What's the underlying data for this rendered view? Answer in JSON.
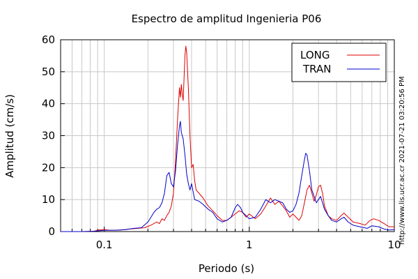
{
  "chart_data": {
    "type": "line",
    "title": "Espectro de amplitud Ingenieria P06",
    "xlabel": "Periodo (s)",
    "ylabel": "Amplitud (cm/s)",
    "x_scale": "log",
    "xlim": [
      0.05,
      10
    ],
    "ylim": [
      0,
      60
    ],
    "x_ticks": [
      {
        "value": 0.1,
        "label": "0.1"
      },
      {
        "value": 1,
        "label": "1"
      },
      {
        "value": 10,
        "label": "10"
      }
    ],
    "y_ticks": [
      {
        "value": 0,
        "label": "0"
      },
      {
        "value": 10,
        "label": "10"
      },
      {
        "value": 20,
        "label": "20"
      },
      {
        "value": 30,
        "label": "30"
      },
      {
        "value": 40,
        "label": "40"
      },
      {
        "value": 50,
        "label": "50"
      },
      {
        "value": 60,
        "label": "60"
      }
    ],
    "grid": true,
    "legend_position": "top-right",
    "side_annotation": "http://www.lis.ucr.ac.cr    2021-07-21 03:20:56 PM",
    "series": [
      {
        "name": "LONG",
        "color": "#dd0000",
        "points": [
          [
            0.05,
            0
          ],
          [
            0.07,
            0
          ],
          [
            0.085,
            0.1
          ],
          [
            0.092,
            0.5
          ],
          [
            0.1,
            0.6
          ],
          [
            0.11,
            0.4
          ],
          [
            0.13,
            0.5
          ],
          [
            0.15,
            0.8
          ],
          [
            0.17,
            1.0
          ],
          [
            0.19,
            1.2
          ],
          [
            0.21,
            2.0
          ],
          [
            0.23,
            3.0
          ],
          [
            0.24,
            2.5
          ],
          [
            0.25,
            4.0
          ],
          [
            0.26,
            3.5
          ],
          [
            0.27,
            5.0
          ],
          [
            0.28,
            6.0
          ],
          [
            0.29,
            8.0
          ],
          [
            0.3,
            12.0
          ],
          [
            0.31,
            22.0
          ],
          [
            0.32,
            35.0
          ],
          [
            0.33,
            45.0
          ],
          [
            0.335,
            42.0
          ],
          [
            0.34,
            46.0
          ],
          [
            0.345,
            43.0
          ],
          [
            0.35,
            41.0
          ],
          [
            0.355,
            48.0
          ],
          [
            0.36,
            55.0
          ],
          [
            0.365,
            58.0
          ],
          [
            0.37,
            56.0
          ],
          [
            0.38,
            45.0
          ],
          [
            0.39,
            30.0
          ],
          [
            0.4,
            20.0
          ],
          [
            0.41,
            21.0
          ],
          [
            0.42,
            16.0
          ],
          [
            0.43,
            13.0
          ],
          [
            0.45,
            12.0
          ],
          [
            0.48,
            10.5
          ],
          [
            0.52,
            8.0
          ],
          [
            0.56,
            6.5
          ],
          [
            0.6,
            5.0
          ],
          [
            0.65,
            3.5
          ],
          [
            0.7,
            3.5
          ],
          [
            0.75,
            4.5
          ],
          [
            0.8,
            5.5
          ],
          [
            0.85,
            6.5
          ],
          [
            0.9,
            6.0
          ],
          [
            0.95,
            4.5
          ],
          [
            1.0,
            5.5
          ],
          [
            1.1,
            4.0
          ],
          [
            1.2,
            5.5
          ],
          [
            1.3,
            8.0
          ],
          [
            1.4,
            10.5
          ],
          [
            1.5,
            8.5
          ],
          [
            1.6,
            9.5
          ],
          [
            1.7,
            8.0
          ],
          [
            1.8,
            6.5
          ],
          [
            1.9,
            4.5
          ],
          [
            2.0,
            5.5
          ],
          [
            2.1,
            4.5
          ],
          [
            2.2,
            3.5
          ],
          [
            2.3,
            5.0
          ],
          [
            2.4,
            9.0
          ],
          [
            2.5,
            13.0
          ],
          [
            2.6,
            14.5
          ],
          [
            2.7,
            12.0
          ],
          [
            2.8,
            9.5
          ],
          [
            2.9,
            11.5
          ],
          [
            3.0,
            14.0
          ],
          [
            3.1,
            14.5
          ],
          [
            3.2,
            12.0
          ],
          [
            3.3,
            8.0
          ],
          [
            3.5,
            5.0
          ],
          [
            3.7,
            4.0
          ],
          [
            4.0,
            3.5
          ],
          [
            4.3,
            5.0
          ],
          [
            4.5,
            5.8
          ],
          [
            4.8,
            4.5
          ],
          [
            5.2,
            3.0
          ],
          [
            5.8,
            2.5
          ],
          [
            6.3,
            2.0
          ],
          [
            6.8,
            3.5
          ],
          [
            7.2,
            4.0
          ],
          [
            7.8,
            3.5
          ],
          [
            8.5,
            2.5
          ],
          [
            9.2,
            1.5
          ],
          [
            10.0,
            1.5
          ]
        ]
      },
      {
        "name": "TRAN",
        "color": "#0000cc",
        "points": [
          [
            0.05,
            0
          ],
          [
            0.07,
            0
          ],
          [
            0.085,
            0.1
          ],
          [
            0.095,
            0.3
          ],
          [
            0.1,
            0.4
          ],
          [
            0.12,
            0.4
          ],
          [
            0.14,
            0.6
          ],
          [
            0.16,
            1.0
          ],
          [
            0.18,
            1.2
          ],
          [
            0.2,
            3.0
          ],
          [
            0.21,
            4.5
          ],
          [
            0.22,
            6.0
          ],
          [
            0.23,
            7.0
          ],
          [
            0.24,
            7.5
          ],
          [
            0.25,
            9.0
          ],
          [
            0.26,
            12.0
          ],
          [
            0.27,
            17.5
          ],
          [
            0.28,
            18.5
          ],
          [
            0.29,
            15.0
          ],
          [
            0.3,
            14.0
          ],
          [
            0.31,
            19.0
          ],
          [
            0.32,
            27.0
          ],
          [
            0.33,
            33.0
          ],
          [
            0.335,
            34.5
          ],
          [
            0.34,
            31.0
          ],
          [
            0.35,
            29.0
          ],
          [
            0.36,
            24.0
          ],
          [
            0.37,
            18.0
          ],
          [
            0.38,
            15.0
          ],
          [
            0.39,
            13.0
          ],
          [
            0.4,
            15.0
          ],
          [
            0.42,
            10.0
          ],
          [
            0.45,
            9.5
          ],
          [
            0.48,
            8.5
          ],
          [
            0.52,
            7.0
          ],
          [
            0.56,
            6.0
          ],
          [
            0.6,
            4.0
          ],
          [
            0.65,
            3.0
          ],
          [
            0.7,
            3.5
          ],
          [
            0.75,
            4.5
          ],
          [
            0.8,
            7.5
          ],
          [
            0.83,
            8.5
          ],
          [
            0.87,
            7.5
          ],
          [
            0.9,
            6.0
          ],
          [
            0.95,
            5.0
          ],
          [
            1.0,
            4.0
          ],
          [
            1.1,
            4.5
          ],
          [
            1.2,
            7.0
          ],
          [
            1.3,
            10.0
          ],
          [
            1.4,
            9.0
          ],
          [
            1.5,
            10.0
          ],
          [
            1.6,
            9.5
          ],
          [
            1.7,
            9.0
          ],
          [
            1.8,
            7.0
          ],
          [
            1.9,
            6.0
          ],
          [
            2.0,
            6.5
          ],
          [
            2.1,
            8.5
          ],
          [
            2.2,
            12.0
          ],
          [
            2.3,
            17.5
          ],
          [
            2.4,
            22.5
          ],
          [
            2.45,
            24.5
          ],
          [
            2.5,
            24.0
          ],
          [
            2.6,
            19.0
          ],
          [
            2.7,
            13.0
          ],
          [
            2.8,
            11.0
          ],
          [
            2.9,
            9.0
          ],
          [
            3.0,
            10.0
          ],
          [
            3.1,
            11.0
          ],
          [
            3.2,
            9.0
          ],
          [
            3.3,
            7.0
          ],
          [
            3.5,
            5.0
          ],
          [
            3.7,
            3.5
          ],
          [
            4.0,
            3.0
          ],
          [
            4.3,
            4.0
          ],
          [
            4.5,
            4.5
          ],
          [
            4.8,
            3.0
          ],
          [
            5.2,
            2.0
          ],
          [
            5.8,
            1.5
          ],
          [
            6.5,
            1.0
          ],
          [
            7.0,
            1.8
          ],
          [
            7.8,
            1.5
          ],
          [
            8.5,
            0.8
          ],
          [
            9.2,
            0.5
          ],
          [
            10.0,
            0.6
          ]
        ]
      }
    ]
  }
}
